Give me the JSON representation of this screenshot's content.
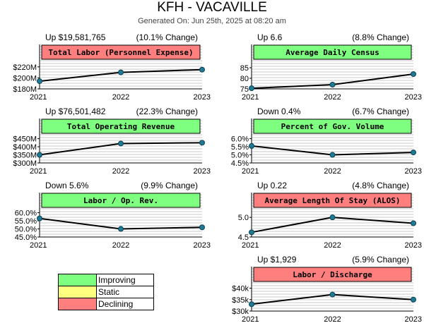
{
  "header": {
    "title": "KFH - VACAVILLE",
    "generated": "Generated On: Jun 25th, 2025 at 08:20 am"
  },
  "legend": [
    {
      "label": "Improving",
      "color": "#7fff7f"
    },
    {
      "label": "Static",
      "color": "#ffff7f"
    },
    {
      "label": "Declining",
      "color": "#ff7f7f"
    }
  ],
  "chart_data": [
    {
      "type": "line",
      "title": "Total Labor (Personnel Expense)",
      "change": "Up $19,581,765",
      "pct": "(10.1% Change)",
      "status": "declining",
      "x": [
        "2021",
        "2022",
        "2023"
      ],
      "values": [
        194,
        210,
        215
      ],
      "ylim": [
        180,
        230
      ],
      "yticks": [
        {
          "v": 220,
          "label": "$220M"
        },
        {
          "v": 200,
          "label": "$200M"
        },
        {
          "v": 180,
          "label": "$180M"
        }
      ]
    },
    {
      "type": "line",
      "title": "Average Daily Census",
      "change": "Up 6.6",
      "pct": "(8.8% Change)",
      "status": "improving",
      "x": [
        "2021",
        "2022",
        "2023"
      ],
      "values": [
        75.3,
        77,
        82
      ],
      "ylim": [
        75,
        88
      ],
      "yticks": [
        {
          "v": 85,
          "label": "85"
        },
        {
          "v": 80,
          "label": "80"
        },
        {
          "v": 75,
          "label": "75"
        }
      ]
    },
    {
      "type": "line",
      "title": "Total Operating Revenue",
      "change": "Up $76,501,482",
      "pct": "(22.3% Change)",
      "status": "improving",
      "x": [
        "2021",
        "2022",
        "2023"
      ],
      "values": [
        350,
        420,
        425
      ],
      "ylim": [
        300,
        470
      ],
      "yticks": [
        {
          "v": 450,
          "label": "$450M"
        },
        {
          "v": 400,
          "label": "$400M"
        },
        {
          "v": 350,
          "label": "$350M"
        },
        {
          "v": 300,
          "label": "$300M"
        }
      ]
    },
    {
      "type": "line",
      "title": "Percent of Gov. Volume",
      "change": "Down 0.4%",
      "pct": "(6.7% Change)",
      "status": "improving",
      "x": [
        "2021",
        "2022",
        "2023"
      ],
      "values": [
        5.55,
        5.0,
        5.15
      ],
      "ylim": [
        4.5,
        6.2
      ],
      "yticks": [
        {
          "v": 6.0,
          "label": "6.0%"
        },
        {
          "v": 5.5,
          "label": "5.5%"
        },
        {
          "v": 5.0,
          "label": "5.0%"
        },
        {
          "v": 4.5,
          "label": "4.5%"
        }
      ]
    },
    {
      "type": "line",
      "title": "Labor / Op. Rev.",
      "change": "Down 5.6%",
      "pct": "(9.9% Change)",
      "status": "improving",
      "x": [
        "2021",
        "2022",
        "2023"
      ],
      "values": [
        56.5,
        50,
        51
      ],
      "ylim": [
        45,
        62
      ],
      "yticks": [
        {
          "v": 60,
          "label": "60.0%"
        },
        {
          "v": 55,
          "label": "55.0%"
        },
        {
          "v": 50,
          "label": "50.0%"
        },
        {
          "v": 45,
          "label": "45.0%"
        }
      ]
    },
    {
      "type": "line",
      "title": "Average Length Of Stay (ALOS)",
      "change": "Up 0.22",
      "pct": "(4.8% Change)",
      "status": "declining",
      "x": [
        "2021",
        "2022",
        "2023"
      ],
      "values": [
        4.62,
        5.0,
        4.85
      ],
      "ylim": [
        4.5,
        5.2
      ],
      "yticks": [
        {
          "v": 5.0,
          "label": "5.0"
        },
        {
          "v": 4.5,
          "label": "4.5"
        }
      ]
    },
    {
      "type": "line",
      "title": "Labor / Discharge",
      "change": "Up $1,929",
      "pct": "(5.9% Change)",
      "status": "declining",
      "x": [
        "2021",
        "2022",
        "2023"
      ],
      "values": [
        33,
        37.2,
        35
      ],
      "ylim": [
        30,
        42
      ],
      "yticks": [
        {
          "v": 40,
          "label": "$40k"
        },
        {
          "v": 35,
          "label": "$35k"
        },
        {
          "v": 30,
          "label": "$30k"
        }
      ]
    }
  ]
}
